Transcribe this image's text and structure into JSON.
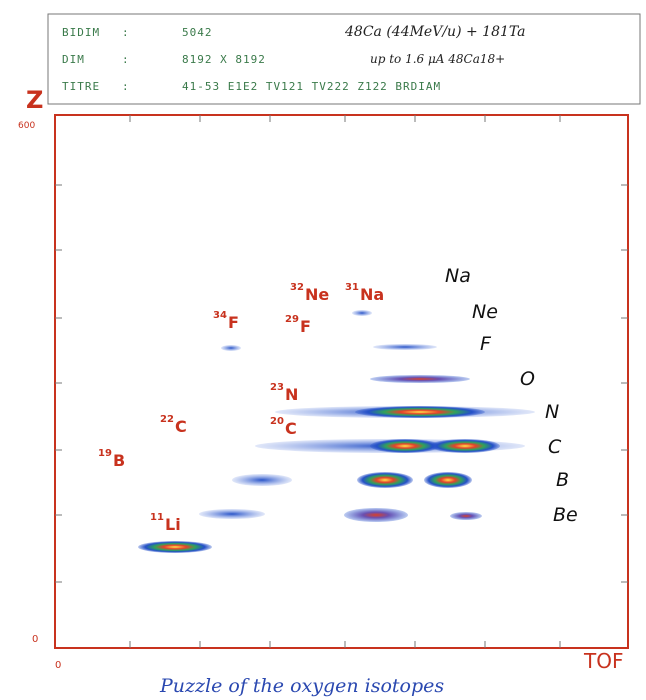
{
  "header": {
    "rows": [
      [
        "BIDIM",
        ":",
        "5042"
      ],
      [
        "DIM",
        ":",
        "8192 X 8192"
      ],
      [
        "TITRE",
        ":",
        "41-53 E1E2 TV121 TV222 Z122 BRDIAM"
      ]
    ],
    "note_1": "48Ca (44MeV/u) + 181Ta",
    "note_2": "up to 1.6 μA 48Ca18+"
  },
  "axes": {
    "y_label": "Z",
    "y_max": "600",
    "y_min": "0",
    "x_min": "0",
    "x_label": "TOF"
  },
  "isotopes": [
    {
      "mass": "32",
      "element": "Ne"
    },
    {
      "mass": "31",
      "element": "Na"
    },
    {
      "mass": "34",
      "element": "F"
    },
    {
      "mass": "29",
      "element": "F"
    },
    {
      "mass": "23",
      "element": "N"
    },
    {
      "mass": "22",
      "element": "C"
    },
    {
      "mass": "20",
      "element": "C"
    },
    {
      "mass": "19",
      "element": "B"
    },
    {
      "mass": "11",
      "element": "Li"
    }
  ],
  "elements": [
    "Na",
    "Ne",
    "F",
    "O",
    "N",
    "C",
    "B",
    "Be"
  ],
  "caption": "Puzzle of the oxygen isotopes"
}
